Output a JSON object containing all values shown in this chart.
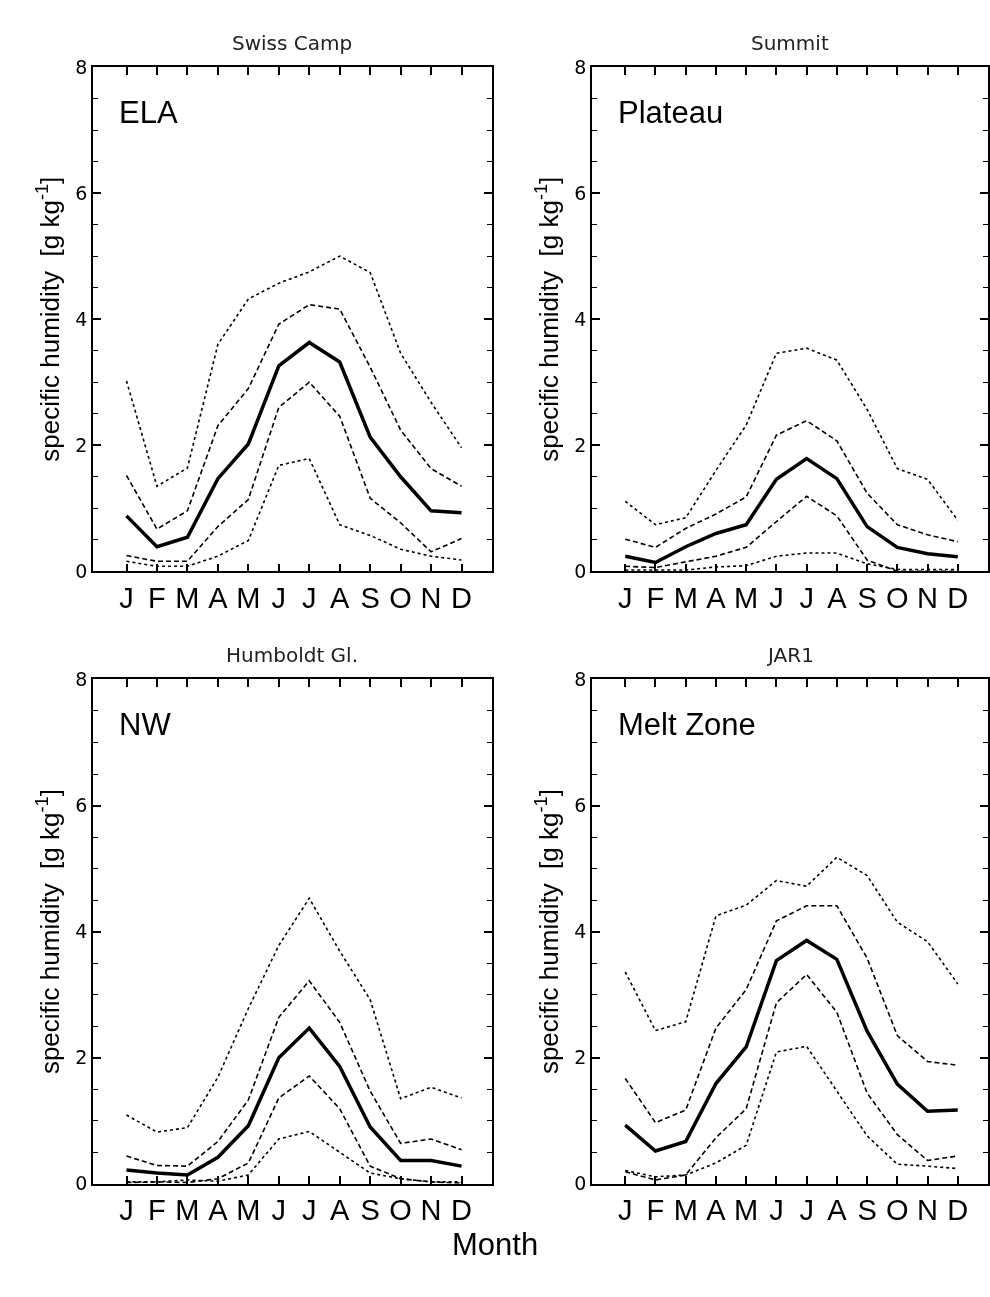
{
  "chart_data": [
    {
      "type": "line",
      "title": "Swiss Camp",
      "annotations": [
        "ELA"
      ],
      "ylabel": "specific humidity  [g kg$^{-1}$]",
      "categories": [
        "J",
        "F",
        "M",
        "A",
        "M",
        "J",
        "J",
        "A",
        "S",
        "O",
        "N",
        "D"
      ],
      "ylim": [
        0,
        8
      ],
      "yticks": [
        0,
        2,
        4,
        6,
        8
      ],
      "tick_labels": "xy",
      "series": [
        {
          "color": "#000000",
          "line_style": "dotted",
          "values": [
            3.02,
            1.35,
            1.64,
            3.6,
            4.32,
            4.57,
            4.75,
            5.0,
            4.74,
            3.46,
            2.68,
            1.96
          ]
        },
        {
          "color": "#000000",
          "line_style": "dashed",
          "values": [
            1.52,
            0.67,
            0.96,
            2.31,
            2.9,
            3.92,
            4.23,
            4.16,
            3.24,
            2.24,
            1.63,
            1.35
          ]
        },
        {
          "color": "#000000",
          "line_style": "solid",
          "values": [
            0.88,
            0.39,
            0.54,
            1.47,
            2.02,
            3.26,
            3.63,
            3.32,
            2.13,
            1.5,
            0.96,
            0.93
          ]
        },
        {
          "color": "#000000",
          "line_style": "dashed",
          "values": [
            0.25,
            0.16,
            0.16,
            0.71,
            1.14,
            2.6,
            3.0,
            2.46,
            1.16,
            0.77,
            0.31,
            0.52
          ]
        },
        {
          "color": "#000000",
          "line_style": "dotted",
          "values": [
            0.16,
            0.08,
            0.08,
            0.24,
            0.49,
            1.68,
            1.79,
            0.74,
            0.57,
            0.35,
            0.24,
            0.18
          ]
        }
      ]
    },
    {
      "type": "line",
      "title": "Summit",
      "annotations": [
        "Plateau"
      ],
      "ylabel": "specific humidity  [g kg$^{-1}$]",
      "categories": [
        "J",
        "F",
        "M",
        "A",
        "M",
        "J",
        "J",
        "A",
        "S",
        "O",
        "N",
        "D"
      ],
      "ylim": [
        0,
        8
      ],
      "yticks": [
        0,
        2,
        4,
        6,
        8
      ],
      "tick_labels": "xy",
      "series": [
        {
          "color": "#000000",
          "line_style": "dotted",
          "values": [
            1.11,
            0.74,
            0.85,
            1.6,
            2.32,
            3.46,
            3.54,
            3.35,
            2.57,
            1.63,
            1.46,
            0.81
          ]
        },
        {
          "color": "#000000",
          "line_style": "dashed",
          "values": [
            0.51,
            0.38,
            0.68,
            0.91,
            1.18,
            2.16,
            2.39,
            2.07,
            1.24,
            0.74,
            0.58,
            0.47
          ]
        },
        {
          "color": "#000000",
          "line_style": "solid",
          "values": [
            0.24,
            0.14,
            0.39,
            0.6,
            0.74,
            1.46,
            1.79,
            1.47,
            0.71,
            0.38,
            0.28,
            0.23
          ]
        },
        {
          "color": "#000000",
          "line_style": "dashed",
          "values": [
            0.08,
            0.06,
            0.15,
            0.24,
            0.38,
            0.79,
            1.19,
            0.88,
            0.18,
            0.0,
            0.0,
            0.0
          ]
        },
        {
          "color": "#000000",
          "line_style": "dotted",
          "values": [
            0.02,
            0.02,
            0.02,
            0.07,
            0.09,
            0.24,
            0.29,
            0.29,
            0.12,
            0.03,
            0.03,
            0.03
          ]
        }
      ]
    },
    {
      "type": "line",
      "title": "Humboldt Gl.",
      "annotations": [
        "NW"
      ],
      "ylabel": "specific humidity  [g kg$^{-1}$]",
      "categories": [
        "J",
        "F",
        "M",
        "A",
        "M",
        "J",
        "J",
        "A",
        "S",
        "O",
        "N",
        "D"
      ],
      "ylim": [
        0,
        8
      ],
      "yticks": [
        0,
        2,
        4,
        6,
        8
      ],
      "tick_labels": "xy",
      "series": [
        {
          "color": "#000000",
          "line_style": "dotted",
          "values": [
            1.09,
            0.82,
            0.89,
            1.69,
            2.78,
            3.78,
            4.53,
            3.69,
            2.92,
            1.35,
            1.53,
            1.36
          ]
        },
        {
          "color": "#000000",
          "line_style": "dashed",
          "values": [
            0.44,
            0.29,
            0.28,
            0.67,
            1.33,
            2.64,
            3.22,
            2.56,
            1.47,
            0.64,
            0.71,
            0.54
          ]
        },
        {
          "color": "#000000",
          "line_style": "solid",
          "values": [
            0.22,
            0.17,
            0.14,
            0.42,
            0.92,
            2.0,
            2.47,
            1.86,
            0.9,
            0.37,
            0.37,
            0.28
          ]
        },
        {
          "color": "#000000",
          "line_style": "dashed",
          "values": [
            0.02,
            0.03,
            0.02,
            0.08,
            0.33,
            1.36,
            1.71,
            1.19,
            0.28,
            0.08,
            0.03,
            0.01
          ]
        },
        {
          "color": "#000000",
          "line_style": "dotted",
          "values": [
            0.03,
            0.03,
            0.06,
            0.04,
            0.14,
            0.71,
            0.83,
            0.5,
            0.17,
            0.08,
            0.03,
            0.03
          ]
        }
      ]
    },
    {
      "type": "line",
      "title": "JAR1",
      "annotations": [
        "Melt Zone"
      ],
      "xlabel": "Month",
      "ylabel": "specific humidity  [g kg$^{-1}$]",
      "categories": [
        "J",
        "F",
        "M",
        "A",
        "M",
        "J",
        "J",
        "A",
        "S",
        "O",
        "N",
        "D"
      ],
      "ylim": [
        0,
        8
      ],
      "yticks": [
        0,
        2,
        4,
        6,
        8
      ],
      "tick_labels": "xy",
      "series": [
        {
          "color": "#000000",
          "line_style": "dotted",
          "values": [
            3.36,
            2.43,
            2.57,
            4.25,
            4.42,
            4.81,
            4.72,
            5.18,
            4.89,
            4.15,
            3.84,
            3.17
          ]
        },
        {
          "color": "#000000",
          "line_style": "dashed",
          "values": [
            1.67,
            0.97,
            1.17,
            2.47,
            3.08,
            4.17,
            4.41,
            4.41,
            3.58,
            2.35,
            1.94,
            1.88
          ]
        },
        {
          "color": "#000000",
          "line_style": "solid",
          "values": [
            0.93,
            0.52,
            0.67,
            1.59,
            2.17,
            3.54,
            3.86,
            3.56,
            2.42,
            1.58,
            1.15,
            1.17
          ]
        },
        {
          "color": "#000000",
          "line_style": "dashed",
          "values": [
            0.19,
            0.06,
            0.14,
            0.73,
            1.19,
            2.87,
            3.32,
            2.72,
            1.44,
            0.78,
            0.37,
            0.44
          ]
        },
        {
          "color": "#000000",
          "line_style": "dotted",
          "values": [
            0.21,
            0.11,
            0.14,
            0.33,
            0.61,
            2.09,
            2.18,
            1.47,
            0.76,
            0.31,
            0.28,
            0.24
          ]
        }
      ]
    }
  ]
}
